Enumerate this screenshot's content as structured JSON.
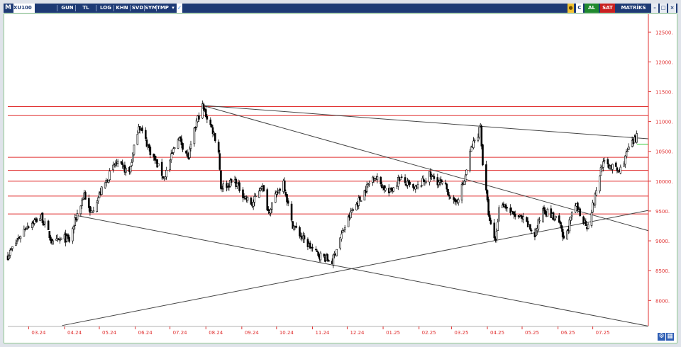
{
  "toolbar": {
    "logo": "M",
    "symbol": "XU100",
    "buttons": [
      "GUN",
      "TL",
      "LOG",
      "KHN",
      "SVD",
      "SYM",
      "TMP"
    ],
    "dropdown_icon": "triangle-down-icon",
    "check_icon": "checkmark-icon",
    "lock_icon": "lock-icon",
    "help_label": "C",
    "buy_label": "AL",
    "sell_label": "SAT",
    "brand": "MATRİKS",
    "window_buttons": [
      "minimize-icon",
      "maximize-icon",
      "close-icon"
    ],
    "colors": {
      "bar": "#1d3a74",
      "buy": "#1f8a2e",
      "sell": "#c82020"
    }
  },
  "corner_icons": [
    "gear-icon",
    "grid-icon"
  ],
  "chart_data": {
    "type": "candlestick",
    "title": "",
    "xlabel": "",
    "ylabel": "",
    "ylim": [
      7600,
      12800
    ],
    "x_range": [
      "2024-02-12",
      "2025-08-18"
    ],
    "x_tick_labels": [
      "03.24",
      "04.24",
      "05.24",
      "06.24",
      "07.24",
      "08.24",
      "09.24",
      "10.24",
      "11.24",
      "12.24",
      "01.25",
      "02.25",
      "03.25",
      "04.25",
      "05.25",
      "06.25",
      "07.25"
    ],
    "x_tick_dates": [
      "2024-03-01",
      "2024-04-01",
      "2024-05-01",
      "2024-06-01",
      "2024-07-01",
      "2024-08-01",
      "2024-09-01",
      "2024-10-01",
      "2024-11-01",
      "2024-12-01",
      "2025-01-01",
      "2025-02-01",
      "2025-03-01",
      "2025-04-01",
      "2025-05-01",
      "2025-06-01",
      "2025-07-01"
    ],
    "y_ticks": [
      8000,
      8500,
      9000,
      9500,
      10000,
      10500,
      11000,
      11500,
      12000,
      12500
    ],
    "y_tick_labels": [
      "8000.",
      "8500.",
      "9000.",
      "9500.",
      "10000.",
      "10500.",
      "11000.",
      "11500.",
      "12000.",
      "12500."
    ],
    "grid": false,
    "colors": {
      "candles": "#000000",
      "levels": "#e03030",
      "trend": "#444444",
      "marker": "#33cc33",
      "axis_text": "#e03030"
    },
    "price_path": [
      [
        "2024-02-12",
        8750
      ],
      [
        "2024-02-28",
        9250
      ],
      [
        "2024-03-12",
        9400
      ],
      [
        "2024-03-22",
        8950
      ],
      [
        "2024-04-01",
        9050
      ],
      [
        "2024-04-05",
        9000
      ],
      [
        "2024-04-12",
        9450
      ],
      [
        "2024-04-18",
        9800
      ],
      [
        "2024-04-23",
        9450
      ],
      [
        "2024-05-03",
        9850
      ],
      [
        "2024-05-15",
        10300
      ],
      [
        "2024-05-27",
        10150
      ],
      [
        "2024-06-04",
        10950
      ],
      [
        "2024-06-14",
        10500
      ],
      [
        "2024-06-26",
        10050
      ],
      [
        "2024-07-08",
        10750
      ],
      [
        "2024-07-17",
        10400
      ],
      [
        "2024-07-24",
        11000
      ],
      [
        "2024-07-29",
        11250
      ],
      [
        "2024-08-08",
        10800
      ],
      [
        "2024-08-12",
        10500
      ],
      [
        "2024-08-14",
        9900
      ],
      [
        "2024-08-26",
        10000
      ],
      [
        "2024-09-03",
        9750
      ],
      [
        "2024-09-10",
        9600
      ],
      [
        "2024-09-18",
        9950
      ],
      [
        "2024-09-24",
        9500
      ],
      [
        "2024-10-07",
        10000
      ],
      [
        "2024-10-14",
        9300
      ],
      [
        "2024-10-25",
        9000
      ],
      [
        "2024-11-04",
        8800
      ],
      [
        "2024-11-13",
        8700
      ],
      [
        "2024-11-18",
        8650
      ],
      [
        "2024-11-25",
        9050
      ],
      [
        "2024-12-05",
        9500
      ],
      [
        "2024-12-12",
        9700
      ],
      [
        "2024-12-24",
        10100
      ],
      [
        "2025-01-06",
        9800
      ],
      [
        "2025-01-15",
        10050
      ],
      [
        "2025-01-28",
        9850
      ],
      [
        "2025-02-10",
        10100
      ],
      [
        "2025-02-24",
        9900
      ],
      [
        "2025-03-04",
        9600
      ],
      [
        "2025-03-12",
        10000
      ],
      [
        "2025-03-18",
        10550
      ],
      [
        "2025-03-24",
        10800
      ],
      [
        "2025-03-26",
        10950
      ],
      [
        "2025-03-28",
        10300
      ],
      [
        "2025-04-03",
        9300
      ],
      [
        "2025-04-08",
        9000
      ],
      [
        "2025-04-12",
        9700
      ],
      [
        "2025-04-22",
        9450
      ],
      [
        "2025-05-02",
        9350
      ],
      [
        "2025-05-12",
        9100
      ],
      [
        "2025-05-19",
        9550
      ],
      [
        "2025-06-02",
        9300
      ],
      [
        "2025-06-06",
        9000
      ],
      [
        "2025-06-16",
        9600
      ],
      [
        "2025-06-26",
        9250
      ],
      [
        "2025-07-02",
        9650
      ],
      [
        "2025-07-09",
        10300
      ],
      [
        "2025-07-17",
        10250
      ],
      [
        "2025-07-24",
        10150
      ],
      [
        "2025-08-01",
        10550
      ],
      [
        "2025-08-07",
        10700
      ],
      [
        "2025-08-08",
        10800
      ]
    ],
    "horizontal_levels": [
      11250,
      11100,
      10400,
      10180,
      10000,
      9750,
      9450
    ],
    "trend_lines": [
      {
        "from": [
          "2024-07-29",
          11270
        ],
        "to": [
          "2025-08-18",
          10710
        ]
      },
      {
        "from": [
          "2024-07-29",
          11270
        ],
        "to": [
          "2025-08-18",
          9170
        ]
      },
      {
        "from": [
          "2024-04-10",
          9430
        ],
        "to": [
          "2025-08-18",
          7570
        ]
      },
      {
        "from": [
          "2024-03-30",
          7580
        ],
        "to": [
          "2025-08-18",
          9510
        ]
      }
    ],
    "marker_line": {
      "from": [
        "2025-08-08",
        10620
      ],
      "to": [
        "2025-08-18",
        10620
      ]
    }
  }
}
